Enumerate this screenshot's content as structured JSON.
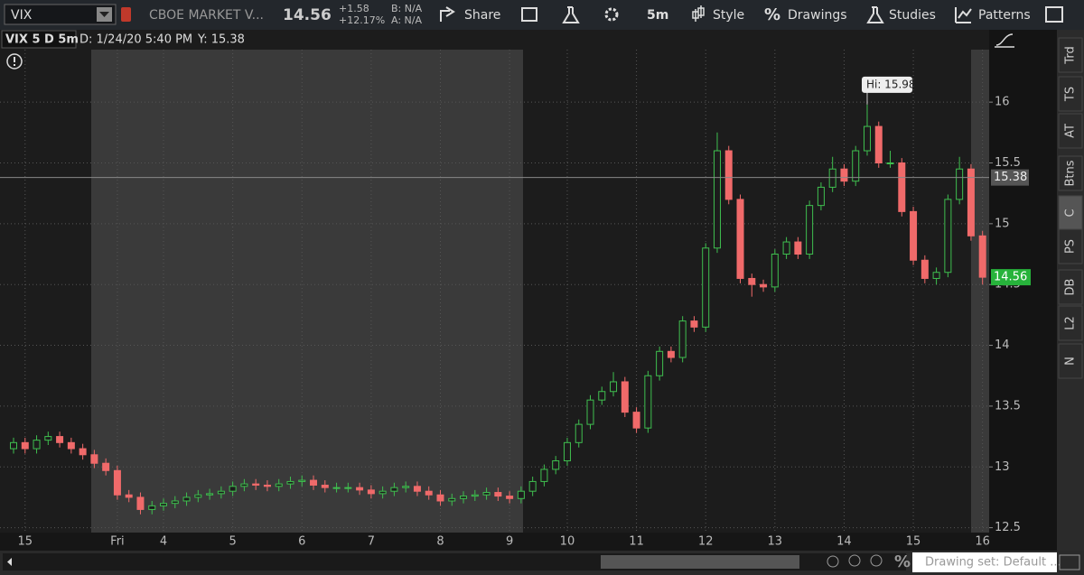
{
  "toolbar": {
    "symbol": "VIX",
    "description": "CBOE MARKET V...",
    "last": 14.56,
    "change": "+1.58",
    "change_pct": "+12.17%",
    "bid": "B: N/A",
    "ask": "A: N/A",
    "buttons": [
      "Share",
      "5m",
      "Style",
      "Drawings",
      "Studies",
      "Patterns"
    ],
    "drawings_icon": "%"
  },
  "chart_header": {
    "title": "VIX 5 D 5m",
    "date": "D: 1/24/20 5:40 PM",
    "y": "Y: 15.38"
  },
  "chart_data": {
    "type": "candlestick",
    "categories": [
      null,
      "15",
      null,
      null,
      null,
      null,
      null,
      null,
      null,
      "Fri",
      null,
      null,
      null,
      "4",
      null,
      null,
      null,
      null,
      null,
      "5",
      null,
      null,
      null,
      null,
      null,
      "6",
      null,
      null,
      null,
      null,
      null,
      "7",
      null,
      null,
      null,
      null,
      null,
      "8",
      null,
      null,
      null,
      null,
      null,
      "9",
      null,
      null,
      null,
      null,
      "10",
      null,
      null,
      null,
      null,
      null,
      "11",
      null,
      null,
      null,
      null,
      null,
      "12",
      null,
      null,
      null,
      null,
      null,
      "13",
      null,
      null,
      null,
      null,
      null,
      "14",
      null,
      null,
      null,
      null,
      null,
      "15",
      null,
      null,
      null,
      null,
      null,
      "16"
    ],
    "open": [
      13.15,
      13.2,
      13.15,
      13.22,
      13.25,
      13.2,
      13.15,
      13.1,
      13.03,
      12.97,
      12.77,
      12.75,
      12.65,
      12.68,
      12.7,
      12.72,
      12.75,
      12.77,
      12.78,
      12.8,
      12.84,
      12.86,
      12.85,
      12.84,
      12.86,
      12.88,
      12.89,
      12.85,
      12.83,
      12.83,
      12.83,
      12.81,
      12.78,
      12.8,
      12.83,
      12.84,
      12.8,
      12.77,
      12.72,
      12.74,
      12.76,
      12.77,
      12.79,
      12.76,
      12.74,
      12.8,
      12.88,
      12.98,
      13.05,
      13.2,
      13.35,
      13.55,
      13.62,
      13.7,
      13.45,
      13.32,
      13.75,
      13.95,
      13.9,
      14.2,
      14.15,
      14.8,
      15.6,
      15.2,
      14.55,
      14.5,
      14.48,
      14.75,
      14.85,
      14.75,
      15.15,
      15.3,
      15.45,
      15.35,
      15.6,
      15.8,
      15.5,
      15.5,
      15.1,
      14.7,
      14.55,
      14.6,
      15.2,
      15.45,
      14.9
    ],
    "high": [
      13.24,
      13.24,
      13.26,
      13.29,
      13.29,
      13.24,
      13.19,
      13.14,
      13.07,
      13.01,
      12.81,
      12.79,
      12.72,
      12.74,
      12.76,
      12.79,
      12.81,
      12.82,
      12.84,
      12.88,
      12.9,
      12.9,
      12.89,
      12.9,
      12.92,
      12.93,
      12.93,
      12.89,
      12.87,
      12.87,
      12.87,
      12.85,
      12.84,
      12.87,
      12.88,
      12.88,
      12.84,
      12.81,
      12.78,
      12.8,
      12.81,
      12.83,
      12.83,
      12.8,
      12.84,
      12.92,
      13.02,
      13.09,
      13.24,
      13.39,
      13.59,
      13.66,
      13.78,
      13.74,
      13.49,
      13.79,
      13.99,
      13.99,
      14.24,
      14.24,
      14.84,
      15.75,
      15.64,
      15.24,
      14.59,
      14.54,
      14.79,
      14.89,
      14.89,
      15.19,
      15.34,
      15.55,
      15.49,
      15.64,
      15.98,
      15.84,
      15.6,
      15.54,
      15.14,
      14.74,
      14.64,
      15.24,
      15.55,
      15.49,
      14.94
    ],
    "low": [
      13.11,
      13.11,
      13.11,
      13.18,
      13.16,
      13.11,
      13.06,
      12.99,
      12.93,
      12.73,
      12.71,
      12.61,
      12.61,
      12.64,
      12.66,
      12.68,
      12.71,
      12.73,
      12.74,
      12.76,
      12.8,
      12.81,
      12.8,
      12.8,
      12.82,
      12.84,
      12.81,
      12.79,
      12.79,
      12.79,
      12.77,
      12.74,
      12.74,
      12.76,
      12.79,
      12.76,
      12.73,
      12.68,
      12.68,
      12.7,
      12.72,
      12.73,
      12.72,
      12.7,
      12.7,
      12.76,
      12.84,
      12.94,
      13.01,
      13.16,
      13.31,
      13.51,
      13.58,
      13.41,
      13.28,
      13.28,
      13.71,
      13.86,
      13.86,
      14.11,
      14.11,
      14.76,
      15.16,
      14.51,
      14.4,
      14.44,
      14.44,
      14.71,
      14.71,
      14.71,
      15.11,
      15.26,
      15.31,
      15.31,
      15.56,
      15.46,
      15.46,
      15.06,
      14.66,
      14.51,
      14.5,
      14.56,
      15.16,
      14.86,
      14.5
    ],
    "close": [
      13.2,
      13.15,
      13.22,
      13.25,
      13.2,
      13.15,
      13.1,
      13.03,
      12.97,
      12.77,
      12.75,
      12.65,
      12.68,
      12.7,
      12.72,
      12.75,
      12.77,
      12.78,
      12.8,
      12.84,
      12.86,
      12.85,
      12.84,
      12.86,
      12.88,
      12.89,
      12.85,
      12.83,
      12.83,
      12.83,
      12.81,
      12.78,
      12.8,
      12.83,
      12.84,
      12.8,
      12.77,
      12.72,
      12.74,
      12.76,
      12.77,
      12.79,
      12.76,
      12.74,
      12.8,
      12.88,
      12.98,
      13.05,
      13.2,
      13.35,
      13.55,
      13.62,
      13.7,
      13.45,
      13.32,
      13.75,
      13.95,
      13.9,
      14.2,
      14.15,
      14.8,
      15.6,
      15.2,
      14.55,
      14.5,
      14.48,
      14.75,
      14.85,
      14.75,
      15.15,
      15.3,
      15.45,
      15.35,
      15.6,
      15.8,
      15.5,
      15.5,
      15.1,
      14.7,
      14.55,
      14.6,
      15.2,
      15.45,
      14.9,
      14.56
    ],
    "up_color": "#3fbf4f",
    "down_color": "#f06a6a",
    "ylim": [
      12.46,
      16.58
    ],
    "yticks": [
      12.5,
      13,
      13.5,
      14,
      14.5,
      15,
      15.5,
      16
    ],
    "grid": true,
    "crosshair": 15.38,
    "hi_label": "Hi: 15.98"
  },
  "sidebar": [
    "Trd",
    "TS",
    "AT",
    "Btns",
    "C",
    "PS",
    "DB",
    "L2",
    "N"
  ],
  "footer": {
    "percent_icon": "%",
    "drawing_set": "Drawing set: Default ..."
  }
}
